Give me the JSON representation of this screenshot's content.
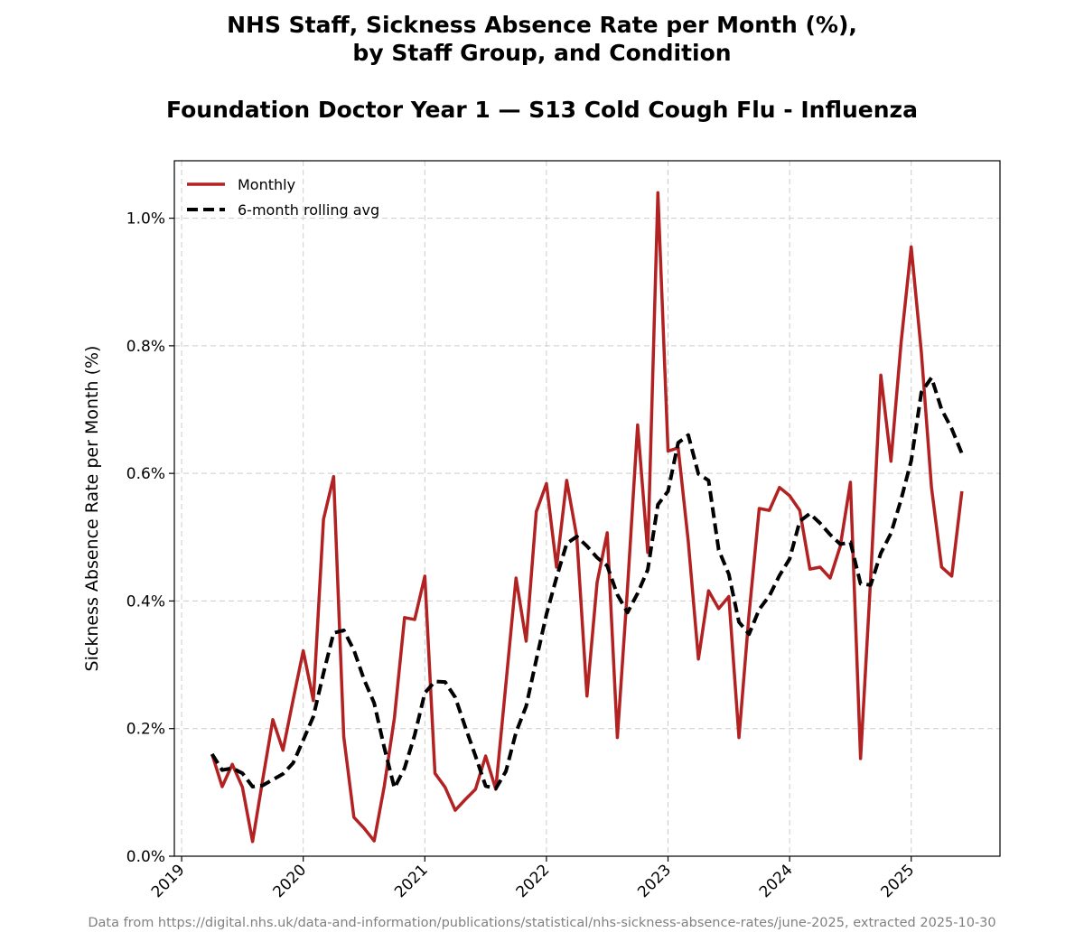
{
  "chart_data": {
    "type": "line",
    "title": [
      "NHS Staff, Sickness Absence Rate per Month (%),",
      "by Staff Group, and Condition"
    ],
    "subtitle": "Foundation Doctor Year 1 — S13 Cold Cough Flu - Influenza",
    "ylabel": "Sickness Absence Rate per Month (%)",
    "note": "Data from https://digital.nhs.uk/data-and-information/publications/statistical/nhs-sickness-absence-rates/june-2025, extracted 2025-10-30",
    "x": [
      "2019-04",
      "2019-05",
      "2019-06",
      "2019-07",
      "2019-08",
      "2019-09",
      "2019-10",
      "2019-11",
      "2019-12",
      "2020-01",
      "2020-02",
      "2020-03",
      "2020-04",
      "2020-05",
      "2020-06",
      "2020-07",
      "2020-08",
      "2020-09",
      "2020-10",
      "2020-11",
      "2020-12",
      "2021-01",
      "2021-02",
      "2021-03",
      "2021-04",
      "2021-05",
      "2021-06",
      "2021-07",
      "2021-08",
      "2021-09",
      "2021-10",
      "2021-11",
      "2021-12",
      "2022-01",
      "2022-02",
      "2022-03",
      "2022-04",
      "2022-05",
      "2022-06",
      "2022-07",
      "2022-08",
      "2022-09",
      "2022-10",
      "2022-11",
      "2022-12",
      "2023-01",
      "2023-02",
      "2023-03",
      "2023-04",
      "2023-05",
      "2023-06",
      "2023-07",
      "2023-08",
      "2023-09",
      "2023-10",
      "2023-11",
      "2023-12",
      "2024-01",
      "2024-02",
      "2024-03",
      "2024-04",
      "2024-05",
      "2024-06",
      "2024-07",
      "2024-08",
      "2024-09",
      "2024-10",
      "2024-11",
      "2024-12",
      "2025-01",
      "2025-02",
      "2025-03",
      "2025-04",
      "2025-05",
      "2025-06"
    ],
    "series": [
      {
        "name": "Monthly",
        "color": "#b22222",
        "style": "solid",
        "values": [
          0.16,
          0.109,
          0.144,
          0.108,
          0.023,
          0.12,
          0.214,
          0.166,
          0.245,
          0.322,
          0.244,
          0.528,
          0.595,
          0.187,
          0.061,
          0.044,
          0.024,
          0.11,
          0.217,
          0.374,
          0.371,
          0.439,
          0.13,
          0.108,
          0.072,
          0.089,
          0.105,
          0.157,
          0.105,
          0.27,
          0.436,
          0.337,
          0.54,
          0.584,
          0.453,
          0.589,
          0.5,
          0.251,
          0.429,
          0.507,
          0.186,
          0.42,
          0.676,
          0.476,
          1.04,
          0.635,
          0.64,
          0.493,
          0.309,
          0.416,
          0.388,
          0.407,
          0.186,
          0.38,
          0.545,
          0.542,
          0.578,
          0.565,
          0.542,
          0.45,
          0.453,
          0.436,
          0.486,
          0.586,
          0.153,
          0.436,
          0.754,
          0.619,
          0.805,
          0.955,
          0.79,
          0.578,
          0.453,
          0.439,
          0.572
        ]
      },
      {
        "name": "6-month rolling avg",
        "color": "#000000",
        "style": "dashed",
        "values": [
          0.16,
          0.135,
          0.138,
          0.13,
          0.109,
          0.111,
          0.12,
          0.129,
          0.146,
          0.182,
          0.219,
          0.287,
          0.35,
          0.354,
          0.323,
          0.277,
          0.24,
          0.17,
          0.107,
          0.138,
          0.19,
          0.256,
          0.274,
          0.273,
          0.249,
          0.202,
          0.157,
          0.11,
          0.106,
          0.133,
          0.194,
          0.235,
          0.308,
          0.379,
          0.437,
          0.49,
          0.501,
          0.486,
          0.468,
          0.455,
          0.41,
          0.382,
          0.412,
          0.449,
          0.551,
          0.572,
          0.648,
          0.66,
          0.599,
          0.589,
          0.48,
          0.442,
          0.367,
          0.348,
          0.387,
          0.408,
          0.44,
          0.466,
          0.525,
          0.537,
          0.522,
          0.504,
          0.489,
          0.492,
          0.427,
          0.425,
          0.475,
          0.506,
          0.559,
          0.62,
          0.727,
          0.75,
          0.7,
          0.67,
          0.631
        ]
      }
    ],
    "xlim": [
      2018.94,
      2025.73
    ],
    "xticks": [
      2019,
      2020,
      2021,
      2022,
      2023,
      2024,
      2025
    ],
    "ylim": [
      0,
      1.09
    ],
    "yticks": [
      {
        "value": 0,
        "label": "0.0%"
      },
      {
        "value": 0.2,
        "label": "0.2%"
      },
      {
        "value": 0.4,
        "label": "0.4%"
      },
      {
        "value": 0.6,
        "label": "0.6%"
      },
      {
        "value": 0.8,
        "label": "0.8%"
      },
      {
        "value": 1.0,
        "label": "1.0%"
      }
    ],
    "grid": true,
    "legend": "upper left"
  }
}
